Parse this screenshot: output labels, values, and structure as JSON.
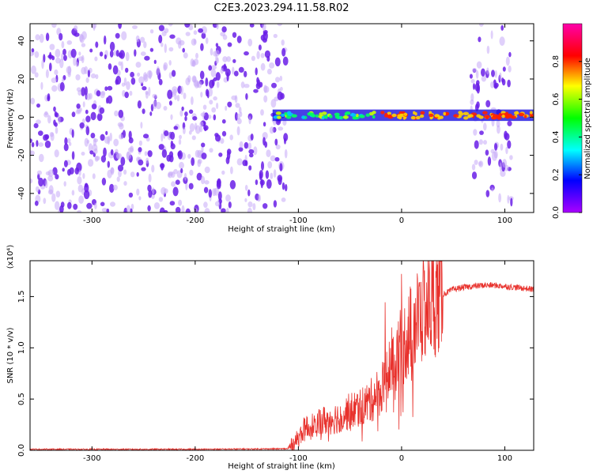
{
  "title": "C2E3.2023.294.11.58.R02",
  "colors": {
    "purple": "#6a1fe8",
    "lavender": "#c7a9f7",
    "snr_line": "#e8312c",
    "colorbar": [
      "#aa00ff",
      "#0000ff",
      "#00ffff",
      "#00ff00",
      "#ffff00",
      "#ff0000",
      "#ff00aa"
    ]
  },
  "chart_data": [
    {
      "type": "heatmap",
      "name": "spectrogram",
      "xlabel": "Height of straight line (km)",
      "ylabel": "Frequency (Hz)",
      "xlim": [
        -360,
        128
      ],
      "ylim": [
        -50,
        49
      ],
      "xticks": [
        "-300",
        "-200",
        "-100",
        "0",
        "100"
      ],
      "yticks": [
        "-40",
        "-20",
        "0",
        "20",
        "40"
      ],
      "xtick_values": [
        -300,
        -200,
        -100,
        0,
        100
      ],
      "ytick_values": [
        -40,
        -20,
        0,
        20,
        40
      ],
      "noise_regions_km": [
        [
          -360,
          -112
        ],
        [
          67,
          108
        ]
      ],
      "signal_band_hz": [
        -2,
        4
      ],
      "signal_start_km": -125,
      "colorbar": {
        "label": "Normalized spectral amplitude",
        "range": [
          0,
          1
        ],
        "ticks": [
          "0.0",
          "0.2",
          "0.4",
          "0.6",
          "0.8"
        ],
        "tick_values": [
          0.0,
          0.2,
          0.4,
          0.6,
          0.8
        ]
      }
    },
    {
      "type": "line",
      "name": "snr",
      "xlabel": "Height of straight line (km)",
      "ylabel": "SNR (10 * v/v)",
      "yunit_label": "(x10⁴)",
      "xlim": [
        -360,
        128
      ],
      "ylim": [
        0,
        1.85
      ],
      "xticks": [
        "-300",
        "-200",
        "-100",
        "0",
        "100"
      ],
      "yticks": [
        "0.0",
        "0.5",
        "1.0",
        "1.5"
      ],
      "xtick_values": [
        -300,
        -200,
        -100,
        0,
        100
      ],
      "ytick_values": [
        0.0,
        0.5,
        1.0,
        1.5
      ],
      "series": [
        {
          "x": [
            -360,
            -300,
            -200,
            -110,
            -100,
            -95,
            -90,
            -80,
            -70,
            -60,
            -50,
            -40,
            -30,
            -20,
            -10,
            -5,
            0,
            10,
            20,
            30,
            40,
            50,
            60,
            70,
            80,
            90,
            100,
            110,
            120,
            128
          ],
          "y": [
            0.01,
            0.01,
            0.01,
            0.015,
            0.12,
            0.2,
            0.22,
            0.28,
            0.3,
            0.33,
            0.38,
            0.42,
            0.48,
            0.6,
            0.85,
            0.95,
            1.0,
            1.2,
            1.35,
            1.45,
            1.52,
            1.57,
            1.59,
            1.6,
            1.61,
            1.61,
            1.6,
            1.59,
            1.58,
            1.57
          ]
        }
      ]
    }
  ]
}
